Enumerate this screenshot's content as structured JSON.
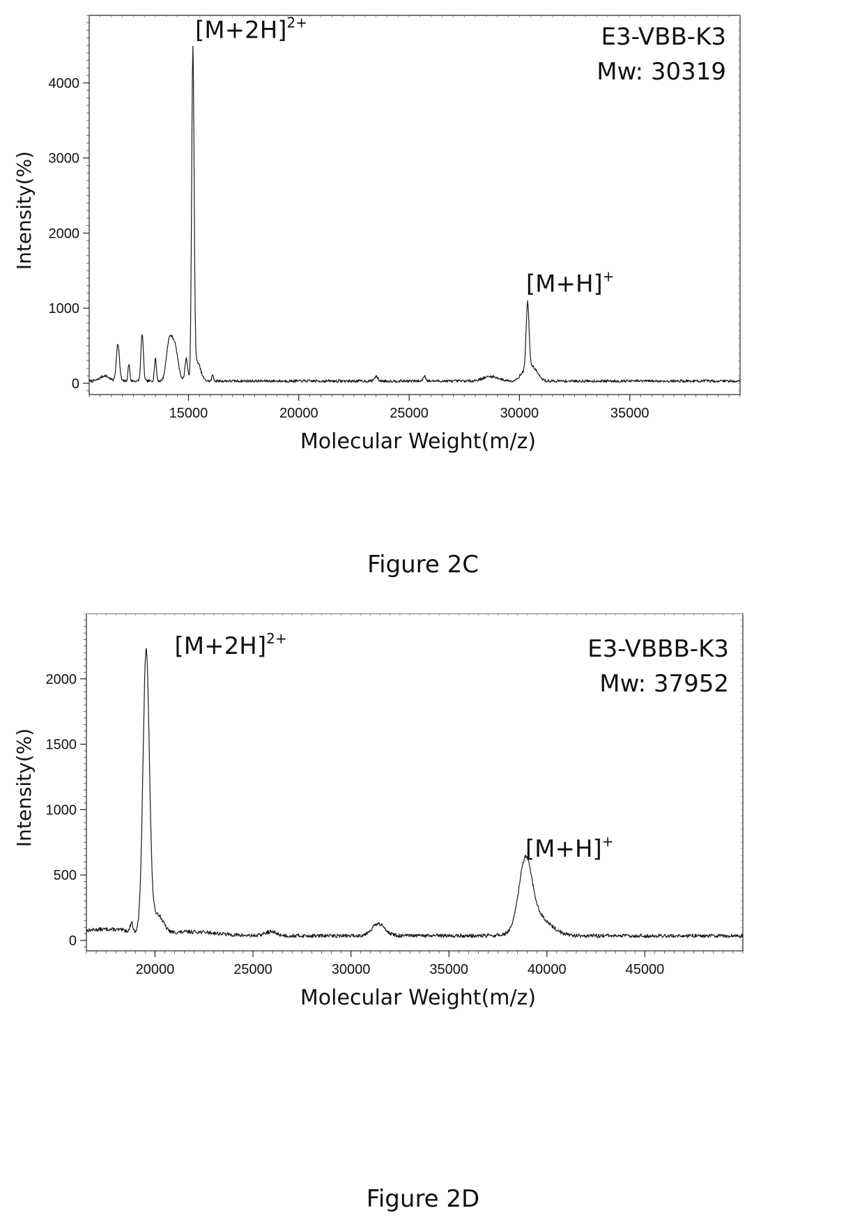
{
  "chart_data": [
    {
      "type": "line",
      "figure_caption": "Figure 2C",
      "sample_label": "E3-VBB-K3",
      "mw_label": "Mw: 30319",
      "xlabel": "Molecular Weight(m/z)",
      "ylabel": "Intensity(%)",
      "xlim": [
        10500,
        40000
      ],
      "ylim": [
        -150,
        4900
      ],
      "xticks": [
        15000,
        20000,
        25000,
        30000,
        35000
      ],
      "yticks": [
        0,
        1000,
        2000,
        3000,
        4000
      ],
      "grid": false,
      "baseline": 30,
      "noise": 18,
      "peaks": [
        {
          "x": 11200,
          "height": 70,
          "width": 200
        },
        {
          "x": 11800,
          "height": 490,
          "width": 70
        },
        {
          "x": 12300,
          "height": 230,
          "width": 40
        },
        {
          "x": 12900,
          "height": 630,
          "width": 55
        },
        {
          "x": 13500,
          "height": 300,
          "width": 45
        },
        {
          "x": 14100,
          "height": 400,
          "width": 120
        },
        {
          "x": 14350,
          "height": 500,
          "width": 160
        },
        {
          "x": 14900,
          "height": 300,
          "width": 60
        },
        {
          "x": 15200,
          "height": 4350,
          "width": 55
        },
        {
          "x": 15400,
          "height": 250,
          "width": 150
        },
        {
          "x": 16100,
          "height": 80,
          "width": 40
        },
        {
          "x": 23500,
          "height": 60,
          "width": 80
        },
        {
          "x": 25700,
          "height": 70,
          "width": 60
        },
        {
          "x": 28700,
          "height": 60,
          "width": 350
        },
        {
          "x": 30200,
          "height": 100,
          "width": 200
        },
        {
          "x": 30370,
          "height": 880,
          "width": 65
        },
        {
          "x": 30600,
          "height": 180,
          "width": 220
        }
      ],
      "annotations": [
        {
          "id": "m2h",
          "base": "[M+2H]",
          "sup": "2+",
          "x": 15300,
          "y": 4600
        },
        {
          "id": "mh",
          "base": "[M+H]",
          "sup": "+",
          "x": 30300,
          "y": 1220
        }
      ]
    },
    {
      "type": "line",
      "figure_caption": "Figure 2D",
      "sample_label": "E3-VBBB-K3",
      "mw_label": "Mw: 37952",
      "xlabel": "Molecular Weight(m/z)",
      "ylabel": "Intensity(%)",
      "xlim": [
        16500,
        50000
      ],
      "ylim": [
        -80,
        2500
      ],
      "xticks": [
        20000,
        25000,
        30000,
        35000,
        40000,
        45000
      ],
      "yticks": [
        0,
        500,
        1000,
        1500,
        2000
      ],
      "grid": false,
      "baseline": 35,
      "noise": 14,
      "peaks": [
        {
          "x": 17500,
          "height": 50,
          "width": 1500
        },
        {
          "x": 18800,
          "height": 70,
          "width": 60
        },
        {
          "x": 19550,
          "height": 2150,
          "width": 160
        },
        {
          "x": 20100,
          "height": 150,
          "width": 300
        },
        {
          "x": 22000,
          "height": 30,
          "width": 1200
        },
        {
          "x": 25900,
          "height": 30,
          "width": 300
        },
        {
          "x": 31400,
          "height": 90,
          "width": 350
        },
        {
          "x": 38900,
          "height": 480,
          "width": 320
        },
        {
          "x": 39400,
          "height": 160,
          "width": 700
        }
      ],
      "annotations": [
        {
          "id": "m2h",
          "base": "[M+2H]",
          "sup": "2+",
          "x": 21000,
          "y": 2190
        },
        {
          "id": "mh",
          "base": "[M+H]",
          "sup": "+",
          "x": 38900,
          "y": 640
        }
      ]
    }
  ]
}
